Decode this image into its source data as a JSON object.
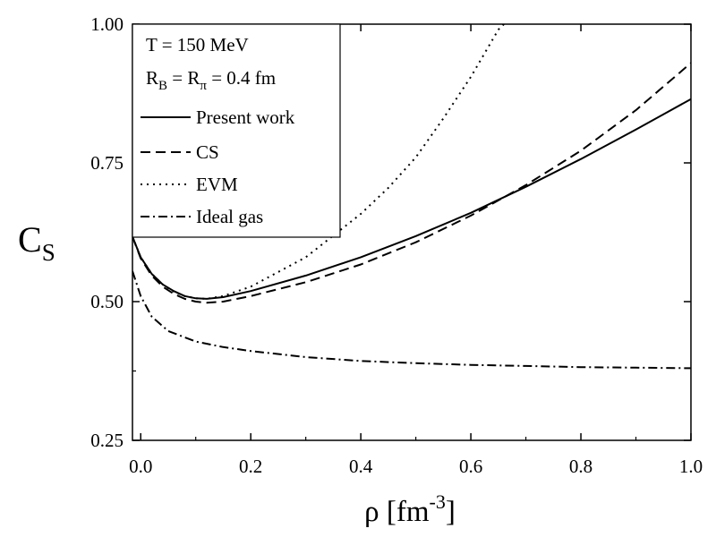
{
  "chart_data": {
    "type": "line",
    "xlabel": {
      "base": "ρ [fm",
      "sup": "-3",
      "tail": "]"
    },
    "ylabel": {
      "base": "C",
      "sub": "S"
    },
    "xlim": [
      -0.015,
      1.0
    ],
    "ylim": [
      0.25,
      1.0
    ],
    "x_ticks": [
      {
        "value": 0.0,
        "label": "0.0"
      },
      {
        "value": 0.2,
        "label": "0.2"
      },
      {
        "value": 0.4,
        "label": "0.4"
      },
      {
        "value": 0.6,
        "label": "0.6"
      },
      {
        "value": 0.8,
        "label": "0.8"
      },
      {
        "value": 1.0,
        "label": "1.0"
      }
    ],
    "y_ticks": [
      {
        "value": 0.25,
        "label": "0.25"
      },
      {
        "value": 0.5,
        "label": "0.50"
      },
      {
        "value": 0.75,
        "label": "0.75"
      },
      {
        "value": 1.0,
        "label": "1.00"
      }
    ],
    "grid": false,
    "legend": {
      "placement": "top-left",
      "header": [
        "T = 150 MeV",
        {
          "base1": "R",
          "sub1": "B",
          "mid": " = R",
          "sub2": "π",
          "tail": " = 0.4 fm"
        }
      ],
      "entries": [
        "Present work",
        "CS",
        "EVM",
        "Ideal gas"
      ]
    },
    "series": [
      {
        "name": "Present work",
        "style": "solid",
        "x": [
          -0.015,
          0.0,
          0.02,
          0.04,
          0.06,
          0.08,
          0.1,
          0.12,
          0.15,
          0.2,
          0.3,
          0.4,
          0.5,
          0.6,
          0.7,
          0.8,
          0.9,
          1.0
        ],
        "y": [
          0.617,
          0.58,
          0.55,
          0.531,
          0.519,
          0.51,
          0.506,
          0.505,
          0.508,
          0.519,
          0.547,
          0.58,
          0.618,
          0.66,
          0.707,
          0.757,
          0.81,
          0.865
        ]
      },
      {
        "name": "CS",
        "style": "dashed",
        "x": [
          -0.015,
          0.0,
          0.02,
          0.04,
          0.06,
          0.08,
          0.1,
          0.12,
          0.15,
          0.2,
          0.3,
          0.4,
          0.5,
          0.6,
          0.7,
          0.8,
          0.9,
          1.0
        ],
        "y": [
          0.617,
          0.578,
          0.547,
          0.527,
          0.514,
          0.505,
          0.5,
          0.498,
          0.5,
          0.51,
          0.535,
          0.567,
          0.607,
          0.655,
          0.71,
          0.772,
          0.845,
          0.93
        ]
      },
      {
        "name": "EVM",
        "style": "dotted",
        "x": [
          -0.015,
          0.0,
          0.02,
          0.04,
          0.06,
          0.08,
          0.1,
          0.12,
          0.15,
          0.2,
          0.3,
          0.4,
          0.45,
          0.5,
          0.55,
          0.6,
          0.65,
          0.66
        ],
        "y": [
          0.617,
          0.58,
          0.55,
          0.531,
          0.518,
          0.51,
          0.506,
          0.505,
          0.51,
          0.527,
          0.58,
          0.658,
          0.705,
          0.76,
          0.83,
          0.905,
          0.99,
          1.0
        ]
      },
      {
        "name": "Ideal gas",
        "style": "dashdot",
        "x": [
          -0.015,
          0.0,
          0.02,
          0.05,
          0.1,
          0.15,
          0.2,
          0.3,
          0.4,
          0.5,
          0.6,
          0.7,
          0.8,
          0.9,
          1.0
        ],
        "y": [
          0.555,
          0.51,
          0.473,
          0.447,
          0.428,
          0.418,
          0.411,
          0.4,
          0.393,
          0.389,
          0.386,
          0.384,
          0.382,
          0.381,
          0.38
        ]
      }
    ]
  }
}
